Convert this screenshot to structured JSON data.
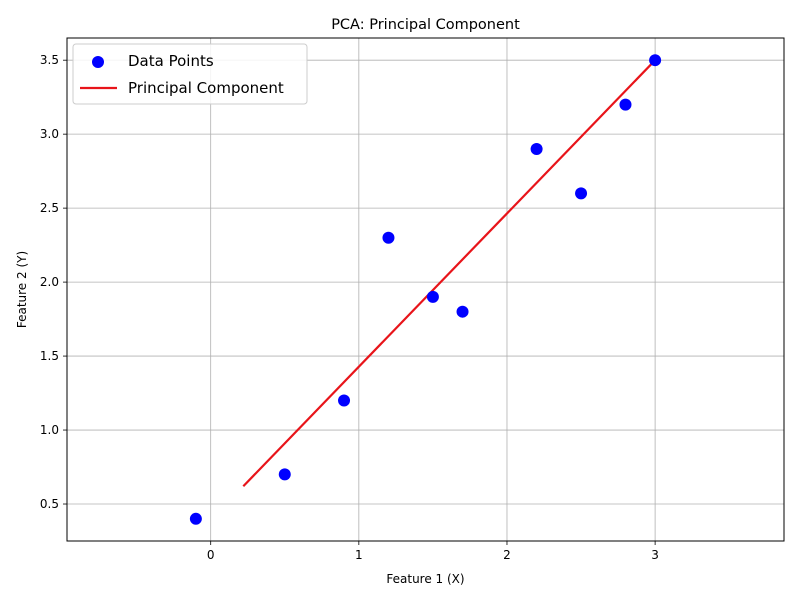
{
  "chart_data": {
    "type": "scatter",
    "title": "PCA: Principal Component",
    "xlabel": "Feature 1 (X)",
    "ylabel": "Feature 2 (Y)",
    "xlim": [
      -0.97,
      3.87
    ],
    "ylim": [
      0.25,
      3.65
    ],
    "xticks": [
      0,
      1,
      2,
      3
    ],
    "yticks": [
      0.5,
      1.0,
      1.5,
      2.0,
      2.5,
      3.0,
      3.5
    ],
    "xtick_labels": [
      "0",
      "1",
      "2",
      "3"
    ],
    "ytick_labels": [
      "0.5",
      "1.0",
      "1.5",
      "2.0",
      "2.5",
      "3.0",
      "3.5"
    ],
    "grid": true,
    "legend": "top-left",
    "series": [
      {
        "name": "Data Points",
        "kind": "scatter",
        "color": "#0000ff",
        "x": [
          -0.1,
          0.5,
          0.9,
          1.2,
          1.5,
          1.7,
          2.2,
          2.5,
          2.8,
          3.0
        ],
        "y": [
          0.4,
          0.7,
          1.2,
          2.3,
          1.9,
          1.8,
          2.9,
          2.6,
          3.2,
          3.5
        ]
      },
      {
        "name": "Principal Component",
        "kind": "line",
        "color": "#e8141a",
        "x": [
          0.22,
          3.0
        ],
        "y": [
          0.62,
          3.5
        ]
      }
    ]
  }
}
